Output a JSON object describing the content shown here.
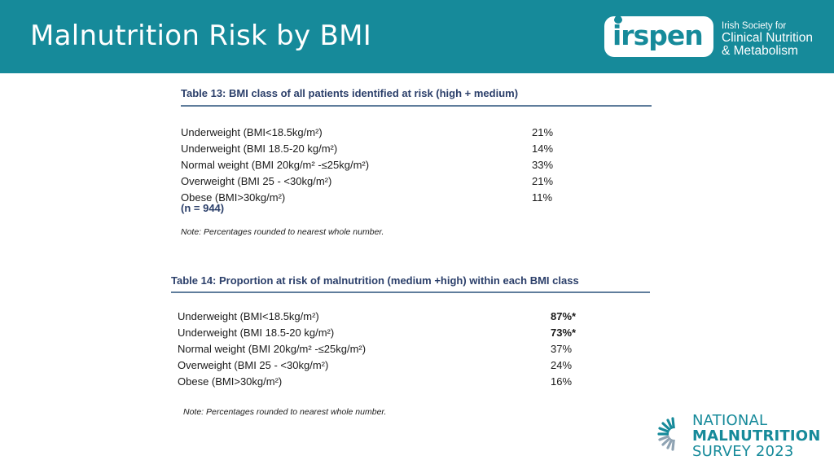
{
  "header": {
    "title": "Malnutrition Risk by BMI",
    "logo_word": "irspen",
    "org_line1": "Irish Society for",
    "org_line2": "Clinical Nutrition",
    "org_line3": "& Metabolism"
  },
  "table13": {
    "caption": "Table 13: BMI class of all patients identified at risk (high + medium)",
    "rows": [
      {
        "label": "Underweight (BMI<18.5kg/m²)",
        "value": "21%"
      },
      {
        "label": "Underweight (BMI 18.5-20 kg/m²)",
        "value": "14%"
      },
      {
        "label": "Normal weight (BMI 20kg/m² -≤25kg/m²)",
        "value": "33%"
      },
      {
        "label": "Overweight (BMI 25 - <30kg/m²)",
        "value": "21%"
      },
      {
        "label": "Obese (BMI>30kg/m²)",
        "value": "11%"
      }
    ],
    "n": "(n = 944)",
    "note": "Note: Percentages rounded to nearest whole number."
  },
  "table14": {
    "caption": "Table 14: Proportion at risk of malnutrition (medium +high) within each BMI class",
    "rows": [
      {
        "label": "Underweight (BMI<18.5kg/m²)",
        "value": "87%*"
      },
      {
        "label": "Underweight (BMI 18.5-20 kg/m²)",
        "value": "73%*"
      },
      {
        "label": "Normal weight (BMI 20kg/m² -≤25kg/m²)",
        "value": "37%"
      },
      {
        "label": "Overweight (BMI 25 - <30kg/m²)",
        "value": "24%"
      },
      {
        "label": "Obese (BMI>30kg/m²)",
        "value": "16%"
      }
    ],
    "note": "Note: Percentages rounded to nearest whole number."
  },
  "footer": {
    "line1": "NATIONAL",
    "line2": "MALNUTRITION",
    "line3": "SURVEY 2023"
  },
  "colors": {
    "brand_teal": "#168a9a",
    "caption_navy": "#2b3f6a",
    "rule": "#5f7d9c"
  }
}
